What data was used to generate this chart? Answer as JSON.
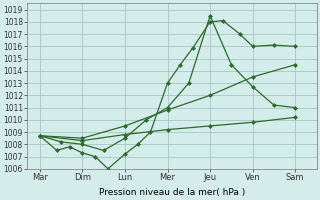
{
  "x_labels": [
    "Mar",
    "Dim",
    "Lun",
    "Mer",
    "Jeu",
    "Ven",
    "Sam"
  ],
  "x_positions": [
    0,
    1,
    2,
    3,
    4,
    5,
    6
  ],
  "series": [
    {
      "name": "jagged_detailed",
      "x": [
        0,
        0.4,
        0.7,
        1.0,
        1.3,
        1.6,
        2.0,
        2.3,
        2.6,
        3.0,
        3.3,
        3.6,
        4.0,
        4.3,
        4.7,
        5.0,
        5.5,
        6.0
      ],
      "y": [
        1008.7,
        1007.5,
        1007.8,
        1007.3,
        1007.0,
        1006.0,
        1007.2,
        1008.0,
        1009.0,
        1013.0,
        1014.5,
        1015.9,
        1018.0,
        1018.1,
        1017.0,
        1016.0,
        1016.1,
        1016.0
      ]
    },
    {
      "name": "rises_peaks_jeu",
      "x": [
        0,
        0.5,
        1.0,
        1.5,
        2.0,
        2.5,
        3.0,
        3.5,
        4.0,
        4.5,
        5.0,
        5.5,
        6.0
      ],
      "y": [
        1008.7,
        1008.2,
        1008.0,
        1007.5,
        1008.5,
        1010.0,
        1011.0,
        1013.0,
        1018.5,
        1014.5,
        1012.7,
        1011.2,
        1011.0
      ]
    },
    {
      "name": "slow_rise_high",
      "x": [
        0,
        1,
        2,
        3,
        4,
        5,
        6
      ],
      "y": [
        1008.7,
        1008.5,
        1009.5,
        1010.8,
        1012.0,
        1013.5,
        1014.5
      ]
    },
    {
      "name": "very_slow_rise",
      "x": [
        0,
        1,
        2,
        3,
        4,
        5,
        6
      ],
      "y": [
        1008.7,
        1008.3,
        1008.8,
        1009.2,
        1009.5,
        1009.8,
        1010.2
      ]
    }
  ],
  "xlabel": "Pression niveau de la mer( hPa )",
  "ylim": [
    1006,
    1019.5
  ],
  "yticks": [
    1006,
    1007,
    1008,
    1009,
    1010,
    1011,
    1012,
    1013,
    1014,
    1015,
    1016,
    1017,
    1018,
    1019
  ],
  "line_color": "#2d6a2d",
  "bg_color": "#d4ecea",
  "grid_color": "#9fbfbf",
  "marker": "D",
  "marker_size": 2.0,
  "line_width": 0.9
}
